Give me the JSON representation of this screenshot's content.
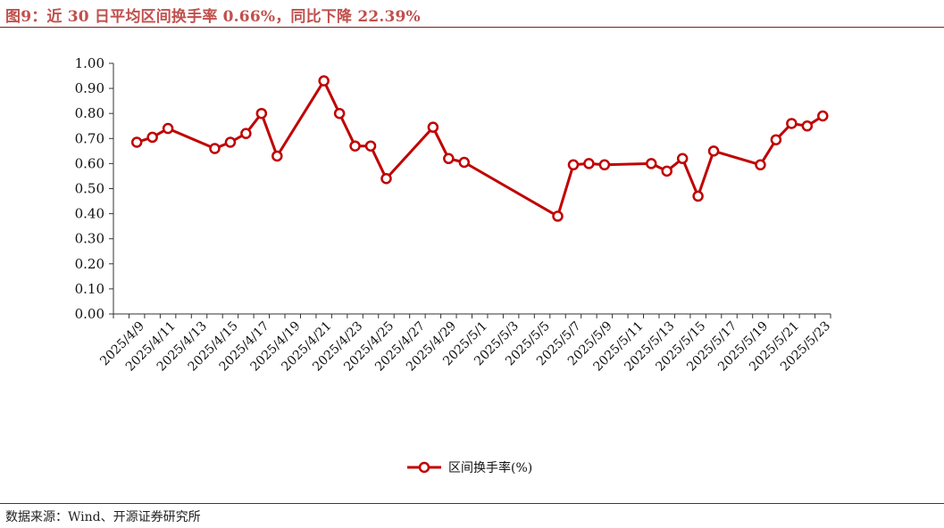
{
  "figure": {
    "title": "图9：近 30 日平均区间换手率 0.66%，同比下降 22.39%",
    "source": "数据来源：Wind、开源证券研究所"
  },
  "chart_data": {
    "type": "line",
    "title": "",
    "xlabel": "",
    "ylabel": "",
    "ylim": [
      0,
      1.0
    ],
    "y_ticks": [
      "0.00",
      "0.10",
      "0.20",
      "0.30",
      "0.40",
      "0.50",
      "0.60",
      "0.70",
      "0.80",
      "0.90",
      "1.00"
    ],
    "x_ticks": [
      "2025/4/9",
      "2025/4/11",
      "2025/4/13",
      "2025/4/15",
      "2025/4/17",
      "2025/4/19",
      "2025/4/21",
      "2025/4/23",
      "2025/4/25",
      "2025/4/27",
      "2025/4/29",
      "2025/5/1",
      "2025/5/3",
      "2025/5/5",
      "2025/5/7",
      "2025/5/9",
      "2025/5/11",
      "2025/5/13",
      "2025/5/15",
      "2025/5/17",
      "2025/5/19",
      "2025/5/21",
      "2025/5/23"
    ],
    "x": [
      "2025/4/9",
      "2025/4/10",
      "2025/4/11",
      "2025/4/14",
      "2025/4/15",
      "2025/4/16",
      "2025/4/17",
      "2025/4/18",
      "2025/4/21",
      "2025/4/22",
      "2025/4/23",
      "2025/4/24",
      "2025/4/25",
      "2025/4/28",
      "2025/4/29",
      "2025/4/30",
      "2025/5/6",
      "2025/5/7",
      "2025/5/8",
      "2025/5/9",
      "2025/5/12",
      "2025/5/13",
      "2025/5/14",
      "2025/5/15",
      "2025/5/16",
      "2025/5/19",
      "2025/5/20",
      "2025/5/21",
      "2025/5/22",
      "2025/5/23"
    ],
    "series": [
      {
        "name": "区间换手率(%)",
        "color": "#c00000",
        "values": [
          0.685,
          0.705,
          0.74,
          0.66,
          0.685,
          0.72,
          0.8,
          0.63,
          0.93,
          0.8,
          0.67,
          0.67,
          0.54,
          0.745,
          0.62,
          0.605,
          0.39,
          0.595,
          0.6,
          0.595,
          0.6,
          0.57,
          0.62,
          0.47,
          0.65,
          0.595,
          0.695,
          0.76,
          0.75,
          0.79
        ]
      }
    ],
    "legend": "bottom-center",
    "grid": false
  }
}
